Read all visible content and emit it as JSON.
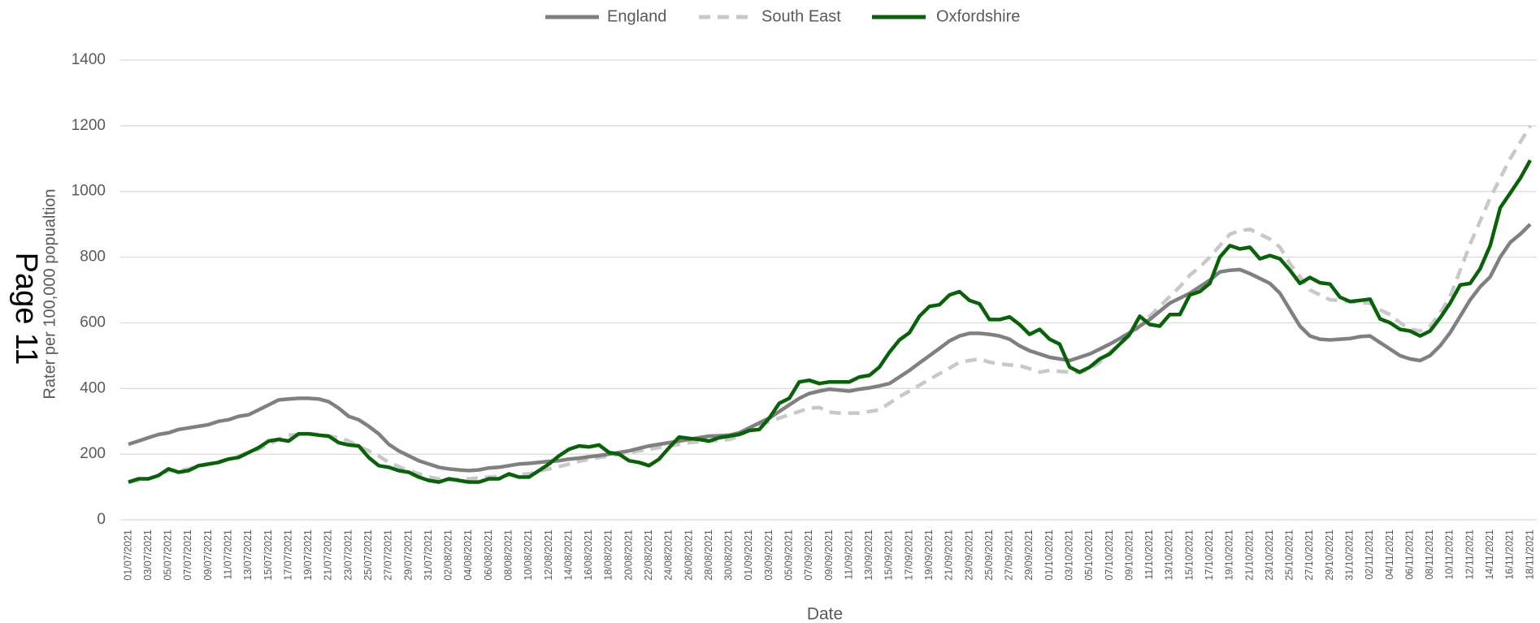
{
  "page_label": "Page 11",
  "chart_data": {
    "type": "line",
    "xlabel": "Date",
    "ylabel": "Rater per 100,000 popualtion",
    "legend": "top",
    "grid": true,
    "ylim": [
      0,
      1400
    ],
    "yticks": [
      0,
      200,
      400,
      600,
      800,
      1000,
      1200,
      1400
    ],
    "categories": [
      "01/07/2021",
      null,
      "03/07/2021",
      null,
      "05/07/2021",
      null,
      "07/07/2021",
      null,
      "09/07/2021",
      null,
      "11/07/2021",
      null,
      "13/07/2021",
      null,
      "15/07/2021",
      null,
      "17/07/2021",
      null,
      "19/07/2021",
      null,
      "21/07/2021",
      null,
      "23/07/2021",
      null,
      "25/07/2021",
      null,
      "27/07/2021",
      null,
      "29/07/2021",
      null,
      "31/07/2021",
      null,
      "02/08/2021",
      null,
      "04/08/2021",
      null,
      "06/08/2021",
      null,
      "08/08/2021",
      null,
      "10/08/2021",
      null,
      "12/08/2021",
      null,
      "14/08/2021",
      null,
      "16/08/2021",
      null,
      "18/08/2021",
      null,
      "20/08/2021",
      null,
      "22/08/2021",
      null,
      "24/08/2021",
      null,
      "26/08/2021",
      null,
      "28/08/2021",
      null,
      "30/08/2021",
      null,
      "01/09/2021",
      null,
      "03/09/2021",
      null,
      "05/09/2021",
      null,
      "07/09/2021",
      null,
      "09/09/2021",
      null,
      "11/09/2021",
      null,
      "13/09/2021",
      null,
      "15/09/2021",
      null,
      "17/09/2021",
      null,
      "19/09/2021",
      null,
      "21/09/2021",
      null,
      "23/09/2021",
      null,
      "25/09/2021",
      null,
      "27/09/2021",
      null,
      "29/09/2021",
      null,
      "01/10/2021",
      null,
      "03/10/2021",
      null,
      "05/10/2021",
      null,
      "07/10/2021",
      null,
      "09/10/2021",
      null,
      "11/10/2021",
      null,
      "13/10/2021",
      null,
      "15/10/2021",
      null,
      "17/10/2021",
      null,
      "19/10/2021",
      null,
      "21/10/2021",
      null,
      "23/10/2021",
      null,
      "25/10/2021",
      null,
      "27/10/2021",
      null,
      "29/10/2021",
      null,
      "31/10/2021",
      null,
      "02/11/2021",
      null,
      "04/11/2021",
      null,
      "06/11/2021",
      null,
      "08/11/2021",
      null,
      "10/11/2021",
      null,
      "12/11/2021",
      null,
      "14/11/2021",
      null,
      "16/11/2021",
      null,
      "18/11/2021"
    ],
    "series": [
      {
        "name": "England",
        "color": "#808080",
        "style": "solid",
        "values": [
          230,
          240,
          250,
          260,
          265,
          275,
          280,
          285,
          290,
          300,
          305,
          315,
          320,
          335,
          350,
          365,
          368,
          370,
          370,
          368,
          360,
          340,
          315,
          305,
          285,
          262,
          230,
          210,
          195,
          180,
          170,
          160,
          155,
          152,
          150,
          152,
          158,
          160,
          165,
          170,
          172,
          175,
          178,
          180,
          185,
          188,
          192,
          196,
          200,
          205,
          210,
          218,
          225,
          230,
          235,
          240,
          245,
          250,
          255,
          256,
          258,
          265,
          280,
          295,
          310,
          330,
          350,
          370,
          385,
          392,
          398,
          395,
          392,
          398,
          402,
          408,
          415,
          435,
          455,
          478,
          500,
          522,
          545,
          560,
          568,
          568,
          565,
          560,
          550,
          530,
          515,
          505,
          495,
          490,
          485,
          495,
          505,
          520,
          535,
          552,
          570,
          590,
          610,
          635,
          660,
          675,
          690,
          710,
          730,
          755,
          760,
          762,
          750,
          735,
          720,
          690,
          640,
          590,
          560,
          550,
          548,
          550,
          552,
          558,
          560,
          540,
          520,
          500,
          490,
          485,
          500,
          530,
          570,
          620,
          670,
          710,
          740,
          800,
          845,
          870,
          900
        ]
      },
      {
        "name": "South East",
        "color": "#c8c8c8",
        "style": "dashed",
        "values": [
          115,
          120,
          125,
          135,
          150,
          150,
          155,
          162,
          170,
          178,
          185,
          195,
          205,
          215,
          230,
          245,
          258,
          260,
          262,
          260,
          255,
          250,
          240,
          225,
          210,
          195,
          175,
          162,
          150,
          140,
          130,
          125,
          122,
          123,
          125,
          128,
          130,
          132,
          135,
          138,
          140,
          148,
          155,
          162,
          170,
          178,
          185,
          190,
          195,
          200,
          205,
          210,
          215,
          220,
          225,
          230,
          235,
          238,
          240,
          242,
          245,
          255,
          275,
          288,
          300,
          310,
          320,
          330,
          340,
          342,
          328,
          325,
          325,
          325,
          330,
          335,
          355,
          375,
          392,
          410,
          428,
          445,
          462,
          480,
          485,
          490,
          480,
          475,
          472,
          470,
          460,
          450,
          455,
          452,
          450,
          448,
          460,
          480,
          510,
          535,
          560,
          590,
          620,
          650,
          680,
          710,
          745,
          770,
          800,
          835,
          870,
          880,
          885,
          870,
          855,
          830,
          780,
          740,
          700,
          685,
          670,
          668,
          665,
          662,
          660,
          640,
          625,
          600,
          580,
          575,
          590,
          630,
          680,
          760,
          840,
          910,
          980,
          1040,
          1100,
          1150,
          1200
        ]
      },
      {
        "name": "Oxfordshire",
        "color": "#0b610b",
        "style": "solid",
        "values": [
          115,
          125,
          125,
          135,
          155,
          145,
          150,
          165,
          170,
          175,
          185,
          190,
          205,
          220,
          240,
          245,
          240,
          262,
          262,
          258,
          255,
          235,
          228,
          225,
          190,
          165,
          160,
          150,
          145,
          130,
          120,
          115,
          125,
          120,
          115,
          115,
          125,
          125,
          140,
          130,
          130,
          150,
          170,
          195,
          215,
          225,
          222,
          228,
          205,
          200,
          180,
          175,
          165,
          185,
          220,
          252,
          248,
          245,
          240,
          250,
          255,
          260,
          272,
          275,
          310,
          355,
          370,
          420,
          425,
          415,
          420,
          420,
          420,
          435,
          440,
          465,
          510,
          548,
          570,
          620,
          650,
          655,
          685,
          695,
          668,
          658,
          610,
          610,
          618,
          595,
          565,
          580,
          550,
          535,
          465,
          450,
          465,
          490,
          505,
          535,
          565,
          620,
          595,
          590,
          625,
          625,
          685,
          695,
          720,
          800,
          835,
          825,
          830,
          795,
          805,
          795,
          760,
          720,
          738,
          722,
          718,
          678,
          665,
          668,
          672,
          612,
          600,
          580,
          575,
          560,
          575,
          615,
          660,
          715,
          720,
          765,
          835,
          950,
          995,
          1040,
          1095
        ]
      }
    ]
  }
}
